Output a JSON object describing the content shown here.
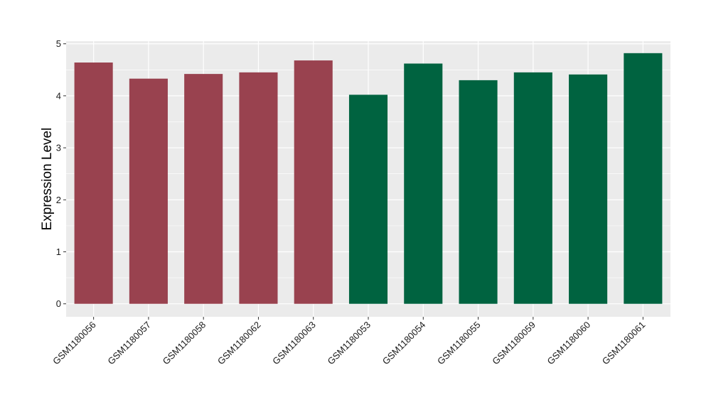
{
  "chart_data": {
    "type": "bar",
    "title": "",
    "xlabel": "",
    "ylabel": "Expression Level",
    "ylim": [
      -0.25,
      5.05
    ],
    "yticks": [
      0,
      1,
      2,
      3,
      4,
      5
    ],
    "grid": true,
    "legend": "none",
    "categories": [
      "GSM1180056",
      "GSM1180057",
      "GSM1180058",
      "GSM1180062",
      "GSM1180063",
      "GSM1180053",
      "GSM1180054",
      "GSM1180055",
      "GSM1180059",
      "GSM1180060",
      "GSM1180061"
    ],
    "values": [
      4.64,
      4.33,
      4.42,
      4.45,
      4.68,
      4.02,
      4.62,
      4.3,
      4.45,
      4.41,
      4.82
    ],
    "bar_colors": [
      "#99424f",
      "#99424f",
      "#99424f",
      "#99424f",
      "#99424f",
      "#006340",
      "#006340",
      "#006340",
      "#006340",
      "#006340",
      "#006340"
    ]
  },
  "style": {
    "panel_background": "#ebebeb",
    "grid_color": "#ffffff",
    "tick_color": "#333333"
  }
}
